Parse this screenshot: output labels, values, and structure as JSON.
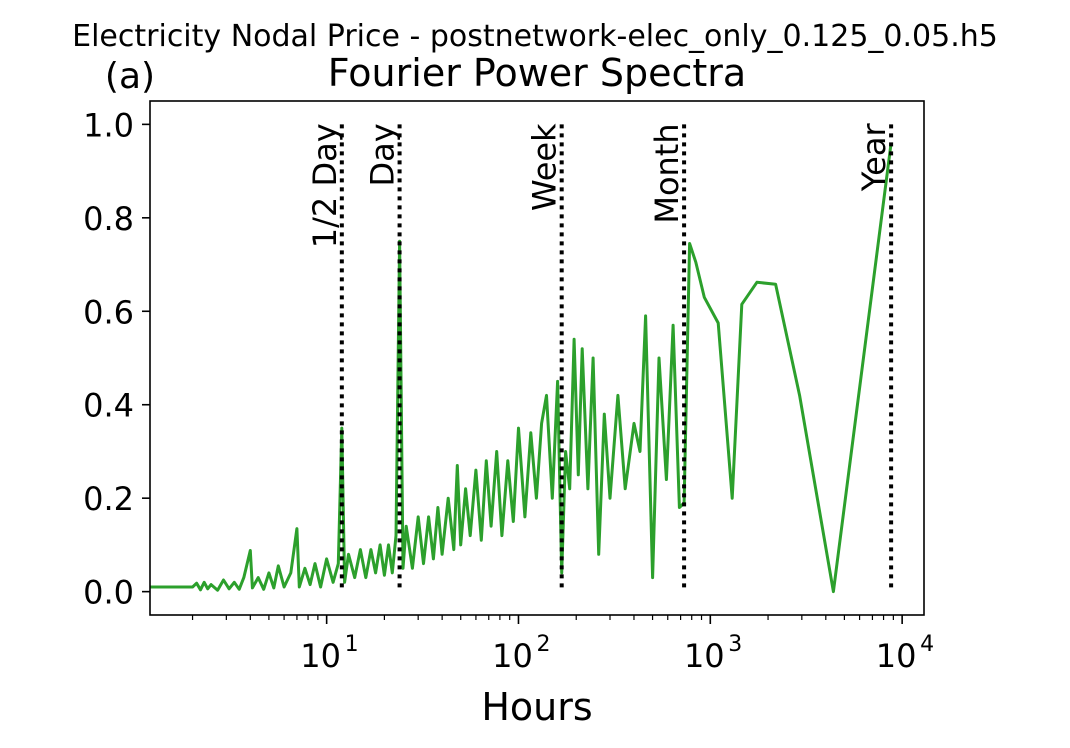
{
  "chart_data": {
    "type": "line",
    "suptitle": "Electricity Nodal Price - postnetwork-elec_only_0.125_0.05.h5",
    "panel_label": "(a)",
    "title": "Fourier Power Spectra",
    "xlabel": "Hours",
    "ylabel": "",
    "xscale": "log",
    "xlim": [
      1.2,
      13000
    ],
    "ylim": [
      -0.05,
      1.05
    ],
    "xticks": [
      {
        "value": 10,
        "label": "10",
        "exp": "1"
      },
      {
        "value": 100,
        "label": "10",
        "exp": "2"
      },
      {
        "value": 1000,
        "label": "10",
        "exp": "3"
      },
      {
        "value": 10000,
        "label": "10",
        "exp": "4"
      }
    ],
    "yticks": [
      {
        "value": 0.0,
        "label": "0.0"
      },
      {
        "value": 0.2,
        "label": "0.2"
      },
      {
        "value": 0.4,
        "label": "0.4"
      },
      {
        "value": 0.6,
        "label": "0.6"
      },
      {
        "value": 0.8,
        "label": "0.8"
      },
      {
        "value": 1.0,
        "label": "1.0"
      }
    ],
    "reference_lines": [
      {
        "x": 12,
        "label": "1/2 Day"
      },
      {
        "x": 24,
        "label": "Day"
      },
      {
        "x": 168,
        "label": "Week"
      },
      {
        "x": 730,
        "label": "Month"
      },
      {
        "x": 8760,
        "label": "Year"
      }
    ],
    "series": [
      {
        "color": "#2ca02c",
        "points": [
          [
            1.2,
            0.01
          ],
          [
            2.0,
            0.01
          ],
          [
            2.1,
            0.018
          ],
          [
            2.2,
            0.004
          ],
          [
            2.3,
            0.02
          ],
          [
            2.4,
            0.006
          ],
          [
            2.5,
            0.015
          ],
          [
            2.7,
            0.003
          ],
          [
            2.9,
            0.025
          ],
          [
            3.1,
            0.006
          ],
          [
            3.3,
            0.02
          ],
          [
            3.5,
            0.005
          ],
          [
            3.7,
            0.03
          ],
          [
            4.0,
            0.088
          ],
          [
            4.1,
            0.008
          ],
          [
            4.4,
            0.03
          ],
          [
            4.7,
            0.005
          ],
          [
            5.0,
            0.04
          ],
          [
            5.3,
            0.008
          ],
          [
            5.6,
            0.055
          ],
          [
            6.0,
            0.01
          ],
          [
            6.5,
            0.04
          ],
          [
            7.0,
            0.135
          ],
          [
            7.2,
            0.01
          ],
          [
            7.7,
            0.05
          ],
          [
            8.2,
            0.015
          ],
          [
            8.7,
            0.06
          ],
          [
            9.3,
            0.01
          ],
          [
            10.0,
            0.07
          ],
          [
            10.8,
            0.02
          ],
          [
            11.5,
            0.06
          ],
          [
            12.0,
            0.35
          ],
          [
            12.4,
            0.02
          ],
          [
            13.0,
            0.08
          ],
          [
            14.0,
            0.03
          ],
          [
            15.0,
            0.09
          ],
          [
            16.0,
            0.03
          ],
          [
            17.0,
            0.09
          ],
          [
            18.0,
            0.04
          ],
          [
            19.0,
            0.1
          ],
          [
            20.0,
            0.035
          ],
          [
            21.0,
            0.1
          ],
          [
            22.0,
            0.04
          ],
          [
            23.0,
            0.12
          ],
          [
            24.0,
            0.75
          ],
          [
            25.0,
            0.05
          ],
          [
            26.0,
            0.14
          ],
          [
            28.0,
            0.05
          ],
          [
            30.0,
            0.16
          ],
          [
            32.0,
            0.06
          ],
          [
            34.0,
            0.16
          ],
          [
            36.0,
            0.07
          ],
          [
            38.0,
            0.18
          ],
          [
            40.0,
            0.08
          ],
          [
            43.0,
            0.2
          ],
          [
            46.0,
            0.09
          ],
          [
            48.0,
            0.27
          ],
          [
            50.0,
            0.1
          ],
          [
            53.0,
            0.22
          ],
          [
            56.0,
            0.12
          ],
          [
            60.0,
            0.26
          ],
          [
            64.0,
            0.11
          ],
          [
            68.0,
            0.28
          ],
          [
            72.0,
            0.14
          ],
          [
            77.0,
            0.3
          ],
          [
            82.0,
            0.12
          ],
          [
            88.0,
            0.28
          ],
          [
            94.0,
            0.15
          ],
          [
            100.0,
            0.35
          ],
          [
            108.0,
            0.16
          ],
          [
            116.0,
            0.34
          ],
          [
            124.0,
            0.2
          ],
          [
            132.0,
            0.36
          ],
          [
            140.0,
            0.42
          ],
          [
            150.0,
            0.2
          ],
          [
            160.0,
            0.45
          ],
          [
            168.0,
            0.04
          ],
          [
            176.0,
            0.3
          ],
          [
            185.0,
            0.22
          ],
          [
            195.0,
            0.54
          ],
          [
            205.0,
            0.25
          ],
          [
            215.0,
            0.52
          ],
          [
            230.0,
            0.22
          ],
          [
            245.0,
            0.5
          ],
          [
            262.0,
            0.08
          ],
          [
            280.0,
            0.38
          ],
          [
            300.0,
            0.2
          ],
          [
            330.0,
            0.42
          ],
          [
            360.0,
            0.22
          ],
          [
            400.0,
            0.36
          ],
          [
            430.0,
            0.3
          ],
          [
            460.0,
            0.59
          ],
          [
            500.0,
            0.03
          ],
          [
            540.0,
            0.5
          ],
          [
            590.0,
            0.24
          ],
          [
            640.0,
            0.57
          ],
          [
            690.0,
            0.18
          ],
          [
            730.0,
            0.19
          ],
          [
            780.0,
            0.745
          ],
          [
            840.0,
            0.705
          ],
          [
            930.0,
            0.63
          ],
          [
            1100.0,
            0.575
          ],
          [
            1300.0,
            0.2
          ],
          [
            1460.0,
            0.615
          ],
          [
            1750.0,
            0.662
          ],
          [
            2190.0,
            0.658
          ],
          [
            2920.0,
            0.42
          ],
          [
            4380.0,
            0.0
          ],
          [
            8760.0,
            0.96
          ]
        ]
      }
    ]
  }
}
